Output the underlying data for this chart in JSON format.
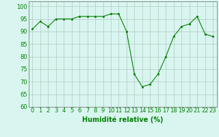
{
  "x": [
    0,
    1,
    2,
    3,
    4,
    5,
    6,
    7,
    8,
    9,
    10,
    11,
    12,
    13,
    14,
    15,
    16,
    17,
    18,
    19,
    20,
    21,
    22,
    23
  ],
  "y": [
    91,
    94,
    92,
    95,
    95,
    95,
    96,
    96,
    96,
    96,
    97,
    97,
    90,
    73,
    68,
    69,
    73,
    80,
    88,
    92,
    93,
    96,
    89,
    88
  ],
  "line_color": "#008000",
  "marker": "s",
  "marker_size": 2,
  "bg_color": "#d9f5f0",
  "grid_color": "#b0c8c0",
  "xlabel": "Humidité relative (%)",
  "xlabel_color": "#008000",
  "xlabel_fontsize": 7,
  "tick_color": "#008000",
  "tick_fontsize": 6,
  "ylim": [
    60,
    102
  ],
  "yticks": [
    60,
    65,
    70,
    75,
    80,
    85,
    90,
    95,
    100
  ],
  "xticks": [
    0,
    1,
    2,
    3,
    4,
    5,
    6,
    7,
    8,
    9,
    10,
    11,
    12,
    13,
    14,
    15,
    16,
    17,
    18,
    19,
    20,
    21,
    22,
    23
  ]
}
